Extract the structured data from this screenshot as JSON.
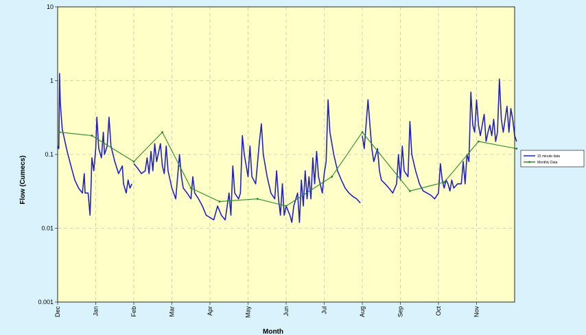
{
  "chart_data": {
    "type": "line",
    "title": "",
    "xlabel": "Month",
    "ylabel": "Flow (Cumecs)",
    "yscale": "log",
    "ylim": [
      0.001,
      10
    ],
    "xlim": [
      0,
      12
    ],
    "y_ticks": [
      {
        "value": 10,
        "label": "10"
      },
      {
        "value": 1,
        "label": "1"
      },
      {
        "value": 0.1,
        "label": "0.1"
      },
      {
        "value": 0.01,
        "label": "0.01"
      },
      {
        "value": 0.001,
        "label": "0.001"
      }
    ],
    "x_ticks": [
      {
        "value": 0,
        "label": "Dec"
      },
      {
        "value": 1,
        "label": "Jan"
      },
      {
        "value": 2,
        "label": "Feb"
      },
      {
        "value": 3,
        "label": "Mar"
      },
      {
        "value": 4,
        "label": "Apr"
      },
      {
        "value": 5,
        "label": "May"
      },
      {
        "value": 6,
        "label": "Jun"
      },
      {
        "value": 7,
        "label": "Jul"
      },
      {
        "value": 8,
        "label": "Aug"
      },
      {
        "value": 9,
        "label": "Sep"
      },
      {
        "value": 10,
        "label": "Oct"
      },
      {
        "value": 11,
        "label": "Nov"
      }
    ],
    "grid": {
      "x": true,
      "y": true
    },
    "legend_position": "right",
    "colors": {
      "background": "#d9f2fb",
      "plot_area": "#ffffc8",
      "grid": "#c8c8b4"
    },
    "series": [
      {
        "name": "15 minute data",
        "color": "#2020c8",
        "segments": [
          [
            [
              0.0,
              0.13
            ],
            [
              0.03,
              0.12
            ],
            [
              0.05,
              1.25
            ],
            [
              0.07,
              0.5
            ],
            [
              0.12,
              0.22
            ],
            [
              0.25,
              0.11
            ],
            [
              0.35,
              0.07
            ],
            [
              0.45,
              0.045
            ],
            [
              0.55,
              0.035
            ],
            [
              0.65,
              0.03
            ],
            [
              0.7,
              0.055
            ],
            [
              0.72,
              0.03
            ],
            [
              0.8,
              0.03
            ],
            [
              0.85,
              0.015
            ],
            [
              0.88,
              0.04
            ],
            [
              0.9,
              0.09
            ],
            [
              0.95,
              0.06
            ],
            [
              1.0,
              0.12
            ],
            [
              1.03,
              0.32
            ],
            [
              1.08,
              0.12
            ],
            [
              1.15,
              0.09
            ],
            [
              1.2,
              0.2
            ],
            [
              1.23,
              0.1
            ],
            [
              1.3,
              0.13
            ],
            [
              1.35,
              0.32
            ],
            [
              1.4,
              0.13
            ],
            [
              1.5,
              0.08
            ],
            [
              1.6,
              0.055
            ],
            [
              1.7,
              0.07
            ],
            [
              1.73,
              0.04
            ],
            [
              1.8,
              0.03
            ],
            [
              1.85,
              0.045
            ],
            [
              1.9,
              0.035
            ],
            [
              1.95,
              0.04
            ]
          ],
          [
            [
              2.0,
              0.075
            ],
            [
              2.1,
              0.065
            ],
            [
              2.2,
              0.055
            ],
            [
              2.3,
              0.06
            ],
            [
              2.35,
              0.09
            ],
            [
              2.4,
              0.055
            ],
            [
              2.45,
              0.11
            ],
            [
              2.5,
              0.06
            ],
            [
              2.55,
              0.14
            ],
            [
              2.6,
              0.08
            ],
            [
              2.7,
              0.14
            ],
            [
              2.75,
              0.07
            ],
            [
              2.8,
              0.055
            ],
            [
              2.85,
              0.13
            ],
            [
              2.9,
              0.06
            ],
            [
              3.0,
              0.035
            ],
            [
              3.1,
              0.025
            ],
            [
              3.2,
              0.1
            ],
            [
              3.25,
              0.05
            ],
            [
              3.3,
              0.035
            ],
            [
              3.4,
              0.03
            ],
            [
              3.5,
              0.025
            ],
            [
              3.55,
              0.05
            ],
            [
              3.6,
              0.03
            ],
            [
              3.7,
              0.025
            ],
            [
              3.8,
              0.02
            ],
            [
              3.9,
              0.015
            ],
            [
              4.0,
              0.014
            ],
            [
              4.1,
              0.013
            ],
            [
              4.2,
              0.02
            ],
            [
              4.3,
              0.015
            ],
            [
              4.4,
              0.013
            ],
            [
              4.5,
              0.03
            ],
            [
              4.55,
              0.015
            ],
            [
              4.6,
              0.07
            ],
            [
              4.65,
              0.03
            ],
            [
              4.75,
              0.025
            ],
            [
              4.8,
              0.03
            ],
            [
              4.85,
              0.18
            ],
            [
              4.9,
              0.1
            ],
            [
              5.0,
              0.05
            ],
            [
              5.05,
              0.13
            ],
            [
              5.1,
              0.05
            ],
            [
              5.2,
              0.04
            ],
            [
              5.3,
              0.15
            ],
            [
              5.35,
              0.26
            ],
            [
              5.4,
              0.1
            ],
            [
              5.5,
              0.05
            ],
            [
              5.6,
              0.03
            ],
            [
              5.7,
              0.025
            ],
            [
              5.75,
              0.06
            ],
            [
              5.8,
              0.025
            ],
            [
              5.85,
              0.015
            ],
            [
              5.9,
              0.04
            ],
            [
              5.95,
              0.015
            ],
            [
              6.0,
              0.02
            ],
            [
              6.1,
              0.015
            ],
            [
              6.15,
              0.012
            ],
            [
              6.2,
              0.02
            ],
            [
              6.3,
              0.03
            ],
            [
              6.35,
              0.012
            ],
            [
              6.4,
              0.045
            ],
            [
              6.45,
              0.02
            ],
            [
              6.5,
              0.06
            ],
            [
              6.55,
              0.025
            ],
            [
              6.6,
              0.05
            ],
            [
              6.65,
              0.025
            ],
            [
              6.7,
              0.09
            ],
            [
              6.75,
              0.04
            ],
            [
              6.8,
              0.11
            ],
            [
              6.85,
              0.05
            ],
            [
              6.95,
              0.03
            ],
            [
              7.0,
              0.055
            ],
            [
              7.05,
              0.08
            ],
            [
              7.1,
              0.55
            ],
            [
              7.15,
              0.2
            ],
            [
              7.25,
              0.1
            ],
            [
              7.35,
              0.06
            ],
            [
              7.45,
              0.045
            ],
            [
              7.55,
              0.035
            ],
            [
              7.65,
              0.03
            ],
            [
              7.75,
              0.027
            ],
            [
              7.85,
              0.025
            ],
            [
              7.95,
              0.022
            ]
          ],
          [
            [
              8.0,
              0.18
            ],
            [
              8.05,
              0.12
            ],
            [
              8.1,
              0.25
            ],
            [
              8.15,
              0.55
            ],
            [
              8.2,
              0.25
            ],
            [
              8.25,
              0.12
            ],
            [
              8.3,
              0.08
            ],
            [
              8.4,
              0.12
            ],
            [
              8.45,
              0.06
            ],
            [
              8.5,
              0.045
            ],
            [
              8.6,
              0.04
            ],
            [
              8.7,
              0.035
            ],
            [
              8.8,
              0.03
            ],
            [
              8.9,
              0.04
            ],
            [
              8.95,
              0.1
            ],
            [
              9.0,
              0.045
            ],
            [
              9.05,
              0.13
            ],
            [
              9.1,
              0.06
            ],
            [
              9.2,
              0.05
            ],
            [
              9.25,
              0.28
            ],
            [
              9.3,
              0.1
            ],
            [
              9.4,
              0.06
            ],
            [
              9.5,
              0.04
            ],
            [
              9.6,
              0.032
            ],
            [
              9.7,
              0.03
            ],
            [
              9.8,
              0.028
            ],
            [
              9.9,
              0.025
            ],
            [
              10.0,
              0.03
            ],
            [
              10.05,
              0.075
            ],
            [
              10.1,
              0.045
            ],
            [
              10.15,
              0.035
            ],
            [
              10.2,
              0.045
            ],
            [
              10.25,
              0.04
            ],
            [
              10.3,
              0.032
            ],
            [
              10.35,
              0.045
            ],
            [
              10.4,
              0.035
            ],
            [
              10.5,
              0.04
            ],
            [
              10.6,
              0.04
            ],
            [
              10.65,
              0.08
            ],
            [
              10.7,
              0.04
            ],
            [
              10.75,
              0.1
            ],
            [
              10.8,
              0.08
            ],
            [
              10.85,
              0.7
            ],
            [
              10.9,
              0.25
            ],
            [
              10.95,
              0.2
            ],
            [
              11.0,
              0.55
            ],
            [
              11.05,
              0.25
            ],
            [
              11.1,
              0.18
            ],
            [
              11.2,
              0.35
            ],
            [
              11.25,
              0.15
            ],
            [
              11.3,
              0.2
            ],
            [
              11.35,
              0.25
            ],
            [
              11.4,
              0.18
            ],
            [
              11.45,
              0.3
            ],
            [
              11.5,
              0.15
            ],
            [
              11.55,
              0.2
            ],
            [
              11.6,
              1.05
            ],
            [
              11.65,
              0.3
            ],
            [
              11.7,
              0.2
            ],
            [
              11.75,
              0.3
            ],
            [
              11.8,
              0.45
            ],
            [
              11.85,
              0.2
            ],
            [
              11.9,
              0.42
            ],
            [
              11.95,
              0.3
            ],
            [
              12.0,
              0.18
            ],
            [
              12.05,
              0.15
            ]
          ]
        ]
      },
      {
        "name": "Monthly Data",
        "color": "#2a8c2a",
        "segments": [
          [
            [
              0.05,
              0.2
            ],
            [
              0.9,
              0.18
            ],
            [
              2.0,
              0.08
            ],
            [
              2.75,
              0.2
            ],
            [
              3.5,
              0.035
            ],
            [
              4.25,
              0.023
            ],
            [
              5.25,
              0.025
            ],
            [
              6.0,
              0.02
            ],
            [
              7.2,
              0.05
            ],
            [
              8.0,
              0.2
            ],
            [
              9.25,
              0.032
            ],
            [
              10.15,
              0.042
            ],
            [
              11.05,
              0.15
            ],
            [
              12.05,
              0.12
            ]
          ]
        ]
      }
    ]
  }
}
